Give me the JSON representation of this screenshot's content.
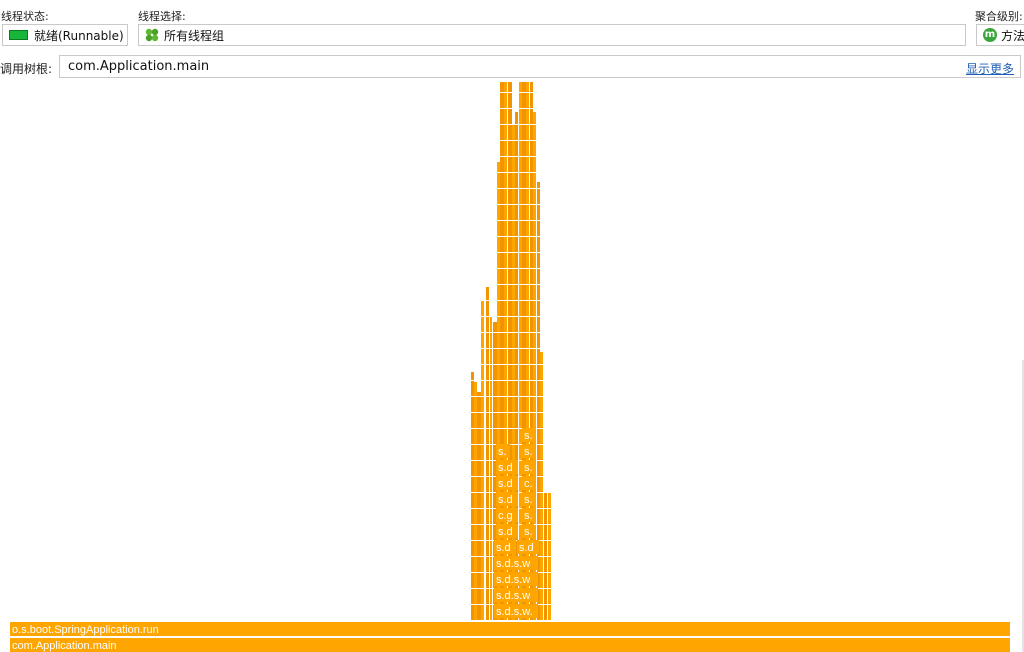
{
  "toolbar": {
    "thread_state_label": "线程状态:",
    "thread_state_value": "就绪(Runnable)",
    "thread_select_label": "线程选择:",
    "thread_select_value": "所有线程组",
    "aggregation_label": "聚合级别:",
    "aggregation_value": "方法",
    "state_color": "#17b63a"
  },
  "call_tree": {
    "label": "调用树根:",
    "value": "com.Application.main",
    "show_more": "显示更多"
  },
  "flame": {
    "frame_color": "#ffa500",
    "frame_color_dark": "#f29400",
    "root_frames": [
      "com.Application.main",
      "o.s.boot.SpringApplication.run"
    ],
    "labels": [
      "s.d.s.w.",
      "s.d.s.w",
      "s.d.s.w",
      "s.d.s.w",
      "s.d",
      "s.d",
      "s.d",
      "s.",
      "c.g",
      "s.",
      "s.d",
      "s.",
      "s.d",
      "c.",
      "s.d",
      "s.",
      "s.",
      "s.",
      "s."
    ]
  }
}
